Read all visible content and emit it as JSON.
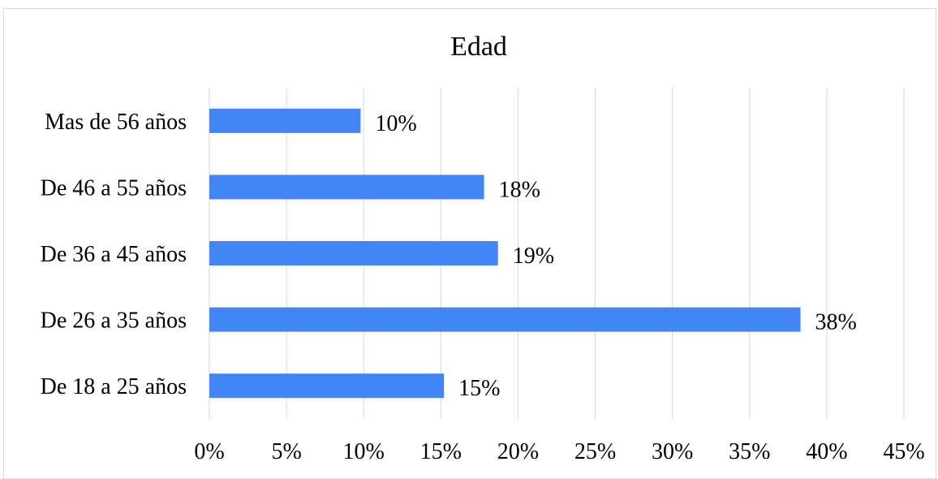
{
  "chart_data": {
    "type": "bar",
    "orientation": "horizontal",
    "title": "Edad",
    "xlabel": "",
    "ylabel": "",
    "categories": [
      "De 18 a 25 años",
      "De 26 a 35 años",
      "De 36 a 45 años",
      "De 46 a 55 años",
      "Mas de 56 años"
    ],
    "values": [
      15,
      38,
      19,
      18,
      10
    ],
    "bar_values": [
      15.2,
      38.3,
      18.7,
      17.8,
      9.8
    ],
    "data_labels": [
      "15%",
      "38%",
      "19%",
      "18%",
      "10%"
    ],
    "xlim": [
      0,
      45
    ],
    "x_ticks": [
      0,
      5,
      10,
      15,
      20,
      25,
      30,
      35,
      40,
      45
    ],
    "x_tick_labels": [
      "0%",
      "5%",
      "10%",
      "15%",
      "20%",
      "25%",
      "30%",
      "35%",
      "40%",
      "45%"
    ],
    "grid": true,
    "legend": "none",
    "colors": {
      "bar": "#4285f4",
      "grid": "#d9d9d9",
      "frame": "#d9d9d9"
    }
  }
}
